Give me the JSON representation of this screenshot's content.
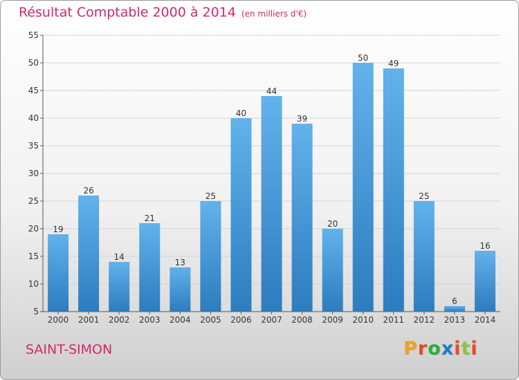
{
  "header": {
    "title": "Résultat Comptable 2000 à 2014",
    "subtitle": "(en milliers d'€)"
  },
  "footer": {
    "town": "SAINT-SIMON",
    "logo_letters": [
      "P",
      "r",
      "o",
      "x",
      "i",
      "t",
      "i"
    ]
  },
  "colors": {
    "title": "#d2286a",
    "bar_light": "#62b2ec",
    "bar_dark": "#2c7cbf",
    "logo": [
      "#f0a21f",
      "#e84b27",
      "#2eaa3a",
      "#1c7fc6",
      "#e84b27",
      "#8cc43f",
      "#e84b27"
    ]
  },
  "chart_data": {
    "type": "bar",
    "title": "Résultat Comptable 2000 à 2014",
    "subtitle": "(en milliers d'€)",
    "categories": [
      "2000",
      "2001",
      "2002",
      "2003",
      "2004",
      "2005",
      "2006",
      "2007",
      "2008",
      "2009",
      "2010",
      "2011",
      "2012",
      "2013",
      "2014"
    ],
    "values": [
      19,
      26,
      14,
      21,
      13,
      25,
      40,
      44,
      39,
      20,
      50,
      49,
      25,
      6,
      16
    ],
    "ylim": [
      5,
      55
    ],
    "yticks": [
      5,
      10,
      15,
      20,
      25,
      30,
      35,
      40,
      45,
      50,
      55
    ],
    "grid": true,
    "data_labels": true
  }
}
